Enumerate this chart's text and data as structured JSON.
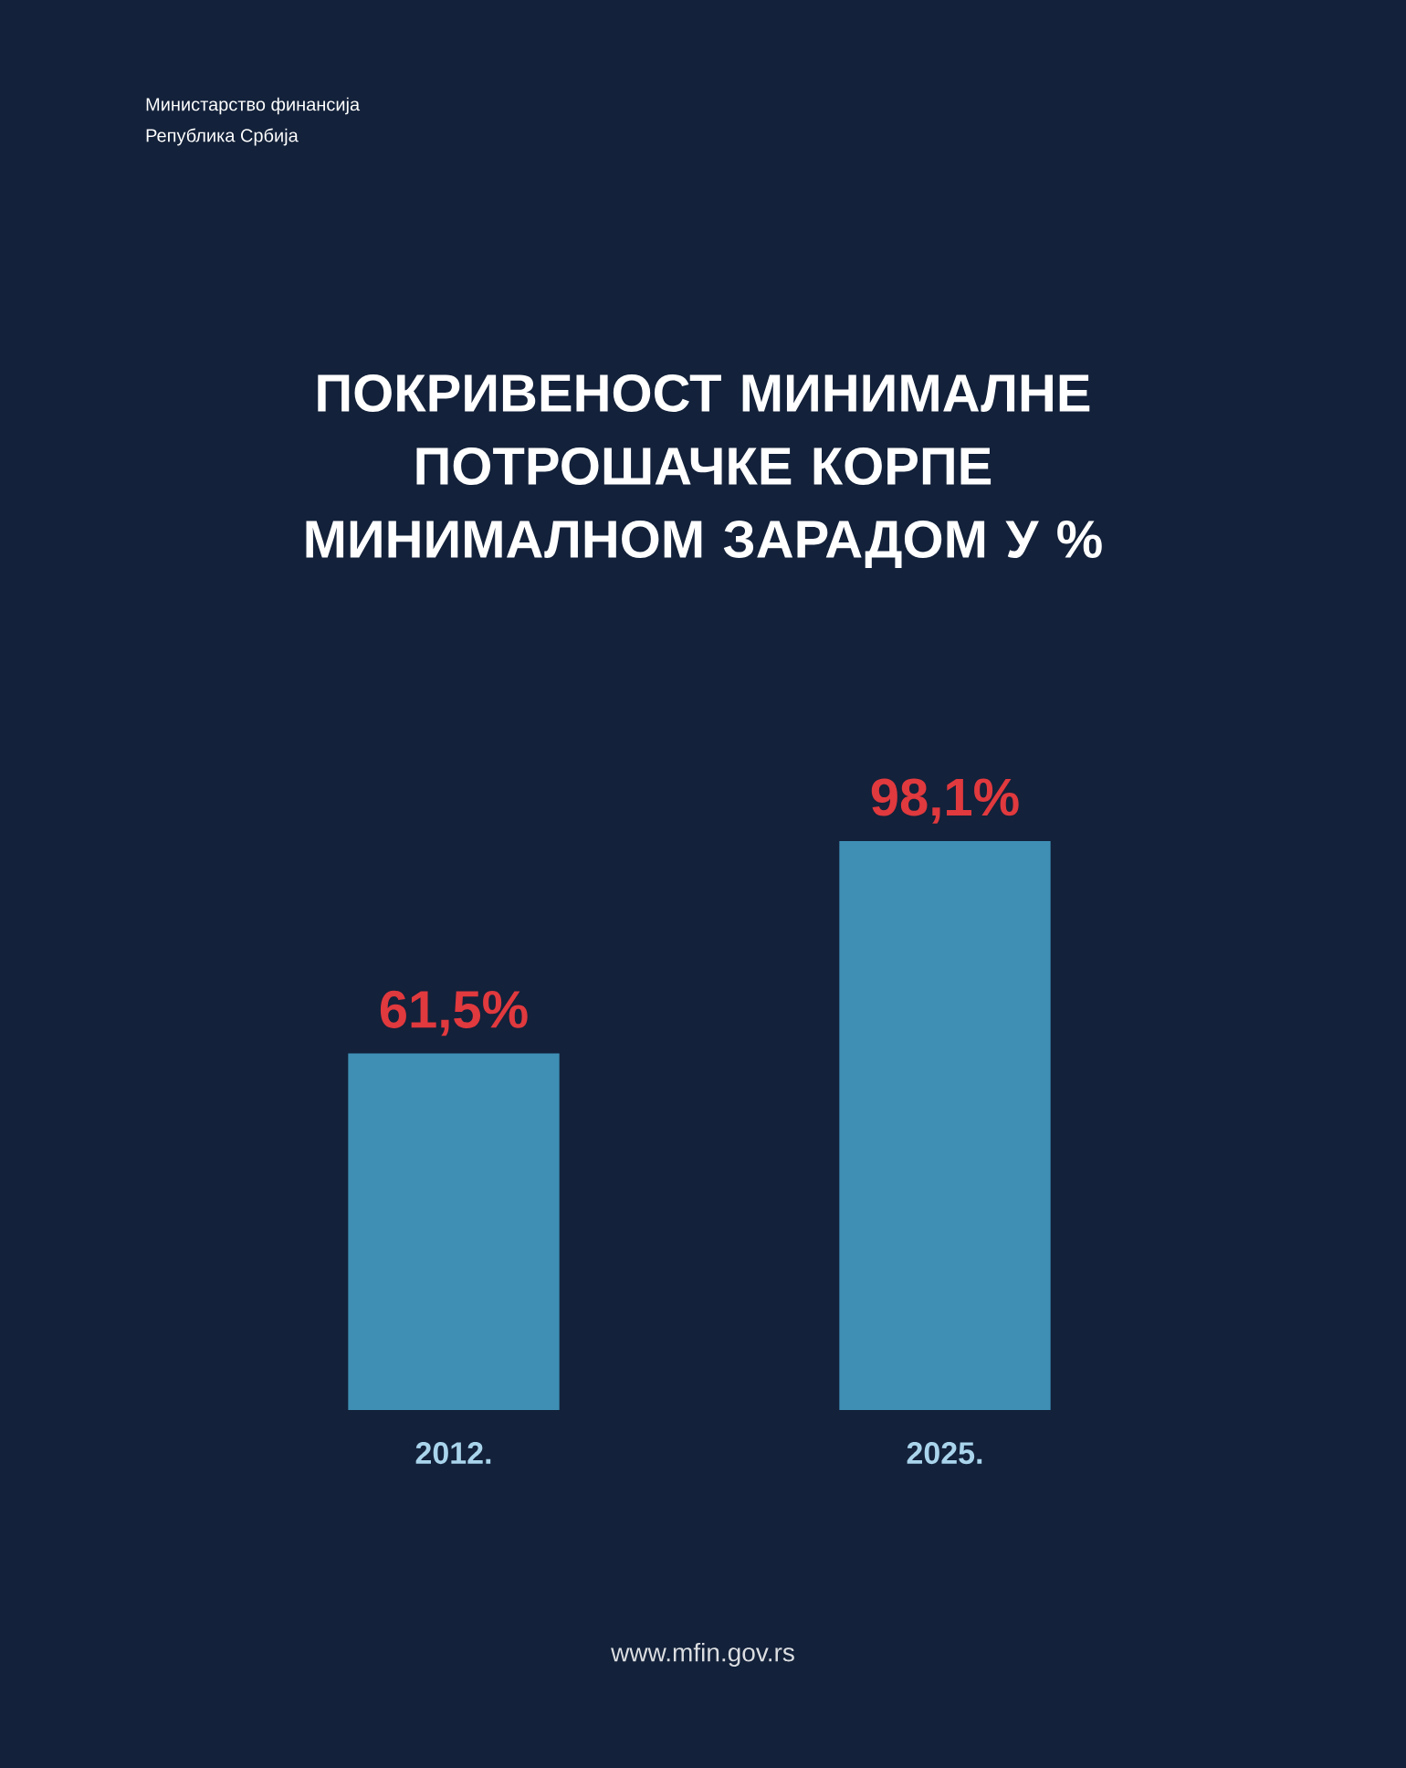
{
  "chart_data": {
    "type": "bar",
    "title": "ПОКРИВЕНОСТ МИНИМАЛНЕ ПОТРОШАЧКЕ КОРПЕ МИНИМАЛНОМ ЗАРАДОМ У %",
    "annotations": [
      "Министарство финансија",
      "Република Србија",
      "www.mfin.gov.rs"
    ],
    "categories": [
      "2012.",
      "2025."
    ],
    "values": [
      61.5,
      98.1
    ],
    "value_labels": [
      "61,5%",
      "98,1%"
    ],
    "color": "#3f8fb5"
  }
}
